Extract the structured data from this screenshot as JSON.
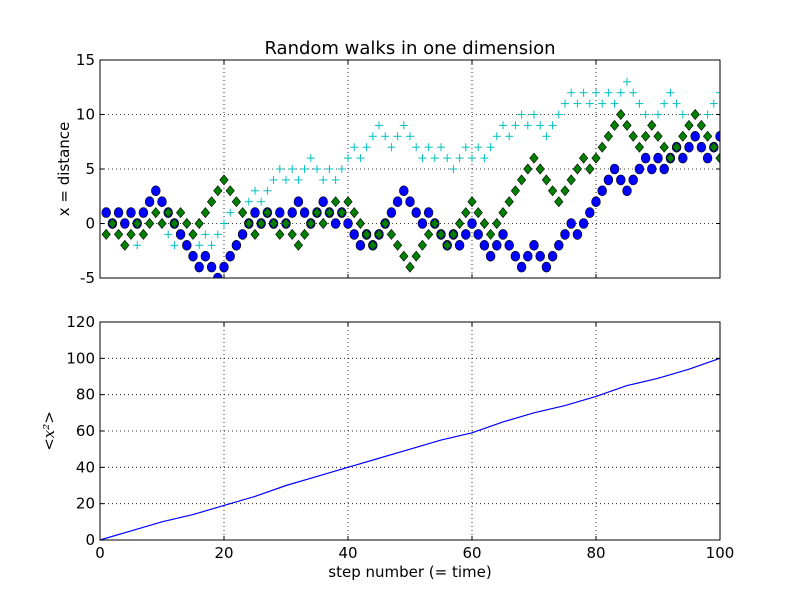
{
  "chart_data": [
    {
      "type": "scatter",
      "title": "Random walks in one dimension",
      "xlabel": "",
      "ylabel": "x = distance",
      "xlim": [
        0,
        100
      ],
      "ylim": [
        -5,
        15
      ],
      "xticks": [
        "0",
        "20",
        "40",
        "60",
        "80",
        "100"
      ],
      "yticks": [
        "-5",
        "0",
        "5",
        "10",
        "15"
      ],
      "grid": true,
      "series": [
        {
          "marker": "plus",
          "color": "#00BFBF",
          "x": [
            1,
            2,
            3,
            4,
            5,
            6,
            7,
            8,
            9,
            10,
            11,
            12,
            13,
            14,
            15,
            16,
            17,
            18,
            19,
            20,
            21,
            22,
            23,
            24,
            25,
            26,
            27,
            28,
            29,
            30,
            31,
            32,
            33,
            34,
            35,
            36,
            37,
            38,
            39,
            40,
            41,
            42,
            43,
            44,
            45,
            46,
            47,
            48,
            49,
            50,
            51,
            52,
            53,
            54,
            55,
            56,
            57,
            58,
            59,
            60,
            61,
            62,
            63,
            64,
            65,
            66,
            67,
            68,
            69,
            70,
            71,
            72,
            73,
            74,
            75,
            76,
            77,
            78,
            79,
            80,
            81,
            82,
            83,
            84,
            85,
            86,
            87,
            88,
            89,
            90,
            91,
            92,
            93,
            94,
            95,
            96,
            97,
            98,
            99,
            100
          ],
          "values": [
            1,
            0,
            -1,
            0,
            -1,
            -2,
            -1,
            0,
            1,
            0,
            -1,
            -2,
            -1,
            0,
            -1,
            -2,
            -1,
            -2,
            -1,
            0,
            1,
            2,
            1,
            2,
            3,
            2,
            3,
            4,
            5,
            4,
            5,
            4,
            5,
            6,
            5,
            4,
            5,
            4,
            5,
            6,
            7,
            6,
            7,
            8,
            9,
            8,
            7,
            8,
            9,
            8,
            7,
            6,
            7,
            6,
            7,
            6,
            5,
            6,
            7,
            6,
            7,
            6,
            7,
            8,
            9,
            8,
            9,
            10,
            9,
            10,
            9,
            8,
            9,
            10,
            11,
            12,
            11,
            12,
            11,
            12,
            11,
            12,
            11,
            12,
            13,
            12,
            11,
            10,
            9,
            10,
            11,
            12,
            11,
            10,
            9,
            10,
            9,
            10,
            11,
            12
          ]
        },
        {
          "marker": "circle",
          "color": "#0000FF",
          "x": [
            1,
            2,
            3,
            4,
            5,
            6,
            7,
            8,
            9,
            10,
            11,
            12,
            13,
            14,
            15,
            16,
            17,
            18,
            19,
            20,
            21,
            22,
            23,
            24,
            25,
            26,
            27,
            28,
            29,
            30,
            31,
            32,
            33,
            34,
            35,
            36,
            37,
            38,
            39,
            40,
            41,
            42,
            43,
            44,
            45,
            46,
            47,
            48,
            49,
            50,
            51,
            52,
            53,
            54,
            55,
            56,
            57,
            58,
            59,
            60,
            61,
            62,
            63,
            64,
            65,
            66,
            67,
            68,
            69,
            70,
            71,
            72,
            73,
            74,
            75,
            76,
            77,
            78,
            79,
            80,
            81,
            82,
            83,
            84,
            85,
            86,
            87,
            88,
            89,
            90,
            91,
            92,
            93,
            94,
            95,
            96,
            97,
            98,
            99,
            100
          ],
          "values": [
            1,
            0,
            1,
            0,
            1,
            0,
            1,
            2,
            3,
            2,
            1,
            0,
            -1,
            -2,
            -3,
            -4,
            -3,
            -4,
            -5,
            -4,
            -3,
            -2,
            -1,
            0,
            1,
            0,
            1,
            0,
            1,
            0,
            1,
            2,
            1,
            0,
            1,
            2,
            1,
            0,
            1,
            0,
            -1,
            -2,
            -1,
            -2,
            -1,
            0,
            1,
            2,
            3,
            2,
            1,
            0,
            1,
            0,
            -1,
            -2,
            -1,
            -2,
            -1,
            0,
            -1,
            -2,
            -3,
            -2,
            -1,
            -2,
            -3,
            -4,
            -3,
            -2,
            -3,
            -4,
            -3,
            -2,
            -1,
            0,
            -1,
            0,
            1,
            2,
            3,
            4,
            5,
            4,
            3,
            4,
            5,
            6,
            5,
            6,
            5,
            6,
            7,
            6,
            7,
            8,
            7,
            6,
            7,
            8
          ]
        },
        {
          "marker": "diamond",
          "color": "#008000",
          "x": [
            1,
            2,
            3,
            4,
            5,
            6,
            7,
            8,
            9,
            10,
            11,
            12,
            13,
            14,
            15,
            16,
            17,
            18,
            19,
            20,
            21,
            22,
            23,
            24,
            25,
            26,
            27,
            28,
            29,
            30,
            31,
            32,
            33,
            34,
            35,
            36,
            37,
            38,
            39,
            40,
            41,
            42,
            43,
            44,
            45,
            46,
            47,
            48,
            49,
            50,
            51,
            52,
            53,
            54,
            55,
            56,
            57,
            58,
            59,
            60,
            61,
            62,
            63,
            64,
            65,
            66,
            67,
            68,
            69,
            70,
            71,
            72,
            73,
            74,
            75,
            76,
            77,
            78,
            79,
            80,
            81,
            82,
            83,
            84,
            85,
            86,
            87,
            88,
            89,
            90,
            91,
            92,
            93,
            94,
            95,
            96,
            97,
            98,
            99,
            100
          ],
          "values": [
            -1,
            0,
            -1,
            -2,
            -1,
            0,
            -1,
            0,
            1,
            0,
            1,
            0,
            1,
            0,
            -1,
            0,
            1,
            2,
            3,
            4,
            3,
            2,
            1,
            0,
            -1,
            0,
            1,
            0,
            -1,
            0,
            -1,
            -2,
            -1,
            0,
            1,
            0,
            1,
            2,
            1,
            2,
            1,
            0,
            -1,
            -2,
            -1,
            0,
            -1,
            -2,
            -3,
            -4,
            -3,
            -2,
            -1,
            0,
            -1,
            -2,
            -1,
            0,
            1,
            2,
            1,
            0,
            -1,
            0,
            1,
            2,
            3,
            4,
            5,
            6,
            5,
            4,
            3,
            2,
            3,
            4,
            5,
            6,
            5,
            6,
            7,
            8,
            9,
            10,
            9,
            8,
            7,
            8,
            9,
            8,
            7,
            6,
            7,
            8,
            9,
            10,
            9,
            8,
            7,
            6
          ]
        }
      ]
    },
    {
      "type": "line",
      "title": "",
      "xlabel": "step number (= time)",
      "ylabel": "<x²>",
      "xlim": [
        0,
        100
      ],
      "ylim": [
        0,
        120
      ],
      "xticks": [
        "0",
        "20",
        "40",
        "60",
        "80",
        "100"
      ],
      "yticks": [
        "0",
        "20",
        "40",
        "60",
        "80",
        "100",
        "120"
      ],
      "grid": true,
      "series": [
        {
          "color": "#0000FF",
          "x": [
            0,
            5,
            10,
            15,
            20,
            25,
            30,
            35,
            40,
            45,
            50,
            55,
            60,
            65,
            70,
            75,
            80,
            85,
            90,
            95,
            100
          ],
          "values": [
            0,
            5,
            10,
            14,
            19,
            24,
            30,
            35,
            40,
            45,
            50,
            55,
            59,
            65,
            70,
            74,
            79,
            85,
            89,
            94,
            100
          ]
        }
      ]
    }
  ]
}
